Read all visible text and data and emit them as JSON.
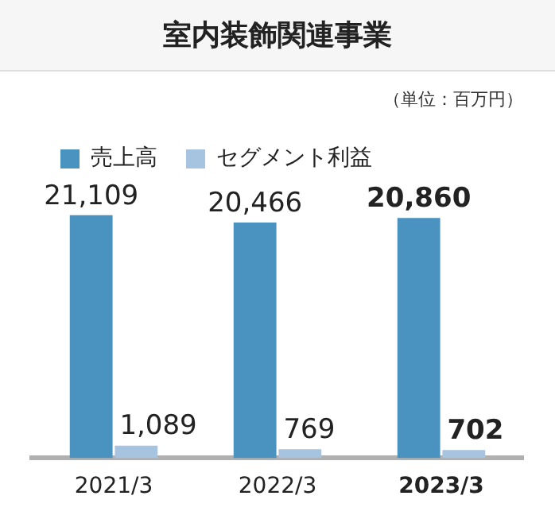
{
  "chart_data": {
    "type": "bar",
    "title": "室内装飾関連事業",
    "annotations": [
      "（単位：百万円）"
    ],
    "categories": [
      "2021/3",
      "2022/3",
      "2023/3"
    ],
    "series": [
      {
        "name": "売上高",
        "color": "#4a93c0",
        "values": [
          21109,
          20466,
          20860
        ],
        "value_labels": [
          "21,109",
          "20,466",
          "20,860"
        ]
      },
      {
        "name": "セグメント利益",
        "color": "#a6c3df",
        "values": [
          1089,
          769,
          702
        ],
        "value_labels": [
          "1,089",
          "769",
          "702"
        ]
      }
    ],
    "legend": "top left",
    "grid": false
  }
}
